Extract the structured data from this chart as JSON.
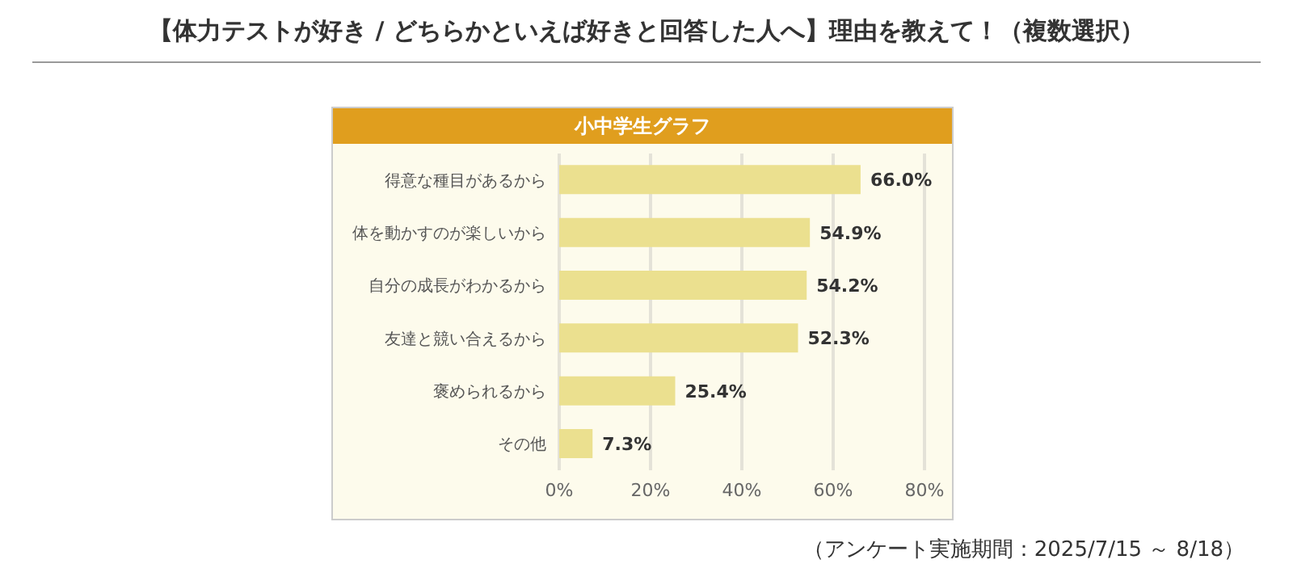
{
  "chart_data": {
    "type": "bar",
    "orientation": "horizontal",
    "title": "【体力テストが好き / どちらかといえば好きと回答した人へ】理由を教えて！（複数選択）",
    "subtitle": "小中学生グラフ",
    "categories": [
      "得意な種目があるから",
      "体を動かすのが楽しいから",
      "自分の成長がわかるから",
      "友達と競い合えるから",
      "褒められるから",
      "その他"
    ],
    "values": [
      66.0,
      54.9,
      54.2,
      52.3,
      25.4,
      7.3
    ],
    "value_labels": [
      "66.0%",
      "54.9%",
      "54.2%",
      "52.3%",
      "25.4%",
      "7.3%"
    ],
    "color": "#ebe08f",
    "xlim": [
      0,
      80
    ],
    "xticks": [
      {
        "value": 0,
        "label": "0%"
      },
      {
        "value": 20,
        "label": "20%"
      },
      {
        "value": 40,
        "label": "40%"
      },
      {
        "value": 60,
        "label": "60%"
      },
      {
        "value": 80,
        "label": "80%"
      }
    ],
    "grid": "x",
    "annotations": [
      "（アンケート実施期間：2025/7/15 ～ 8/18）"
    ]
  }
}
